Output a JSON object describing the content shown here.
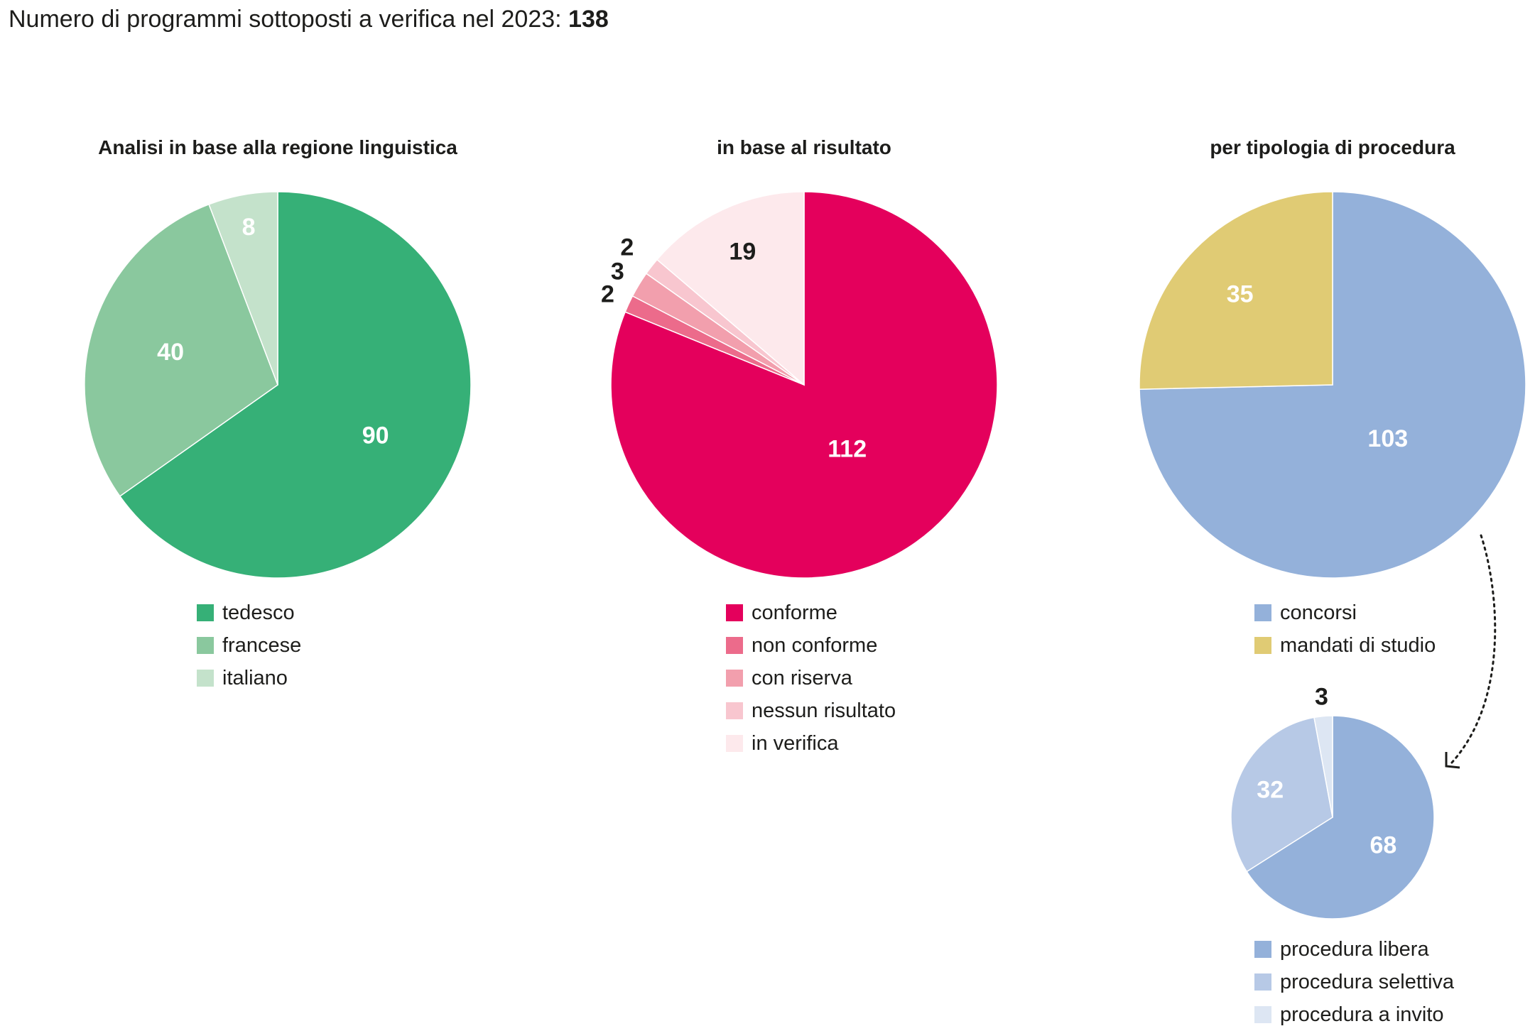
{
  "headline": {
    "text": "Numero di programmi sottoposti a verifica nel 2023:",
    "total": "138"
  },
  "chart_data": [
    {
      "type": "pie",
      "id": "language",
      "title": "Analisi in base alla regione linguistica",
      "slices": [
        {
          "label": "tedesco",
          "value": 90,
          "color": "#36b077",
          "text_color": "#ffffff"
        },
        {
          "label": "francese",
          "value": 40,
          "color": "#8ac89e",
          "text_color": "#ffffff"
        },
        {
          "label": "italiano",
          "value": 8,
          "color": "#c4e2cb",
          "text_color": "#ffffff"
        }
      ]
    },
    {
      "type": "pie",
      "id": "result",
      "title": "in base al risultato",
      "slices": [
        {
          "label": "conforme",
          "value": 112,
          "color": "#e4005c",
          "text_color": "#ffffff"
        },
        {
          "label": "non conforme",
          "value": 2,
          "color": "#ec6b8b",
          "text_color": "#1d1d1b"
        },
        {
          "label": "con riserva",
          "value": 3,
          "color": "#f29fad",
          "text_color": "#1d1d1b"
        },
        {
          "label": "nessun risultato",
          "value": 2,
          "color": "#f8c6cf",
          "text_color": "#1d1d1b"
        },
        {
          "label": "in verifica",
          "value": 19,
          "color": "#fde9ec",
          "text_color": "#1d1d1b"
        }
      ]
    },
    {
      "type": "pie",
      "id": "procedure",
      "title": "per tipologia di procedura",
      "slices": [
        {
          "label": "concorsi",
          "value": 103,
          "color": "#94b1da",
          "text_color": "#ffffff"
        },
        {
          "label": "mandati di studio",
          "value": 35,
          "color": "#e0cb74",
          "text_color": "#ffffff"
        }
      ]
    },
    {
      "type": "pie",
      "id": "competition",
      "title": "",
      "slices": [
        {
          "label": "procedura libera",
          "value": 68,
          "color": "#94b1da",
          "text_color": "#ffffff"
        },
        {
          "label": "procedura selettiva",
          "value": 32,
          "color": "#b7c9e6",
          "text_color": "#ffffff"
        },
        {
          "label": "procedura a invito",
          "value": 3,
          "color": "#dde6f3",
          "text_color": "#1d1d1b"
        }
      ]
    }
  ]
}
